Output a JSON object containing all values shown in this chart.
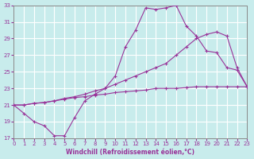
{
  "xlabel": "Windchill (Refroidissement éolien,°C)",
  "xlim": [
    0,
    23
  ],
  "ylim": [
    17,
    33
  ],
  "xticks": [
    0,
    1,
    2,
    3,
    4,
    5,
    6,
    7,
    8,
    9,
    10,
    11,
    12,
    13,
    14,
    15,
    16,
    17,
    18,
    19,
    20,
    21,
    22,
    23
  ],
  "yticks": [
    17,
    19,
    21,
    23,
    25,
    27,
    29,
    31,
    33
  ],
  "bg_color": "#c8ecec",
  "grid_color": "#aacccc",
  "line_color": "#993399",
  "line1_y": [
    21.0,
    20.0,
    19.0,
    18.5,
    17.3,
    17.3,
    19.5,
    21.5,
    22.3,
    23.0,
    24.5,
    28.0,
    30.0,
    32.7,
    32.5,
    32.7,
    33.0,
    30.5,
    29.3,
    27.5,
    27.3,
    25.5,
    25.2,
    23.2
  ],
  "line2_y": [
    21.0,
    21.0,
    21.2,
    21.3,
    21.5,
    21.8,
    22.0,
    22.3,
    22.7,
    23.0,
    23.5,
    24.0,
    24.5,
    25.0,
    25.5,
    26.0,
    27.0,
    28.0,
    29.0,
    29.5,
    29.8,
    29.3,
    25.5,
    23.2
  ],
  "line3_y": [
    21.0,
    21.0,
    21.2,
    21.3,
    21.5,
    21.7,
    21.9,
    22.0,
    22.2,
    22.3,
    22.5,
    22.6,
    22.7,
    22.8,
    23.0,
    23.0,
    23.0,
    23.1,
    23.2,
    23.2,
    23.2,
    23.2,
    23.2,
    23.2
  ],
  "markersize": 2.5
}
